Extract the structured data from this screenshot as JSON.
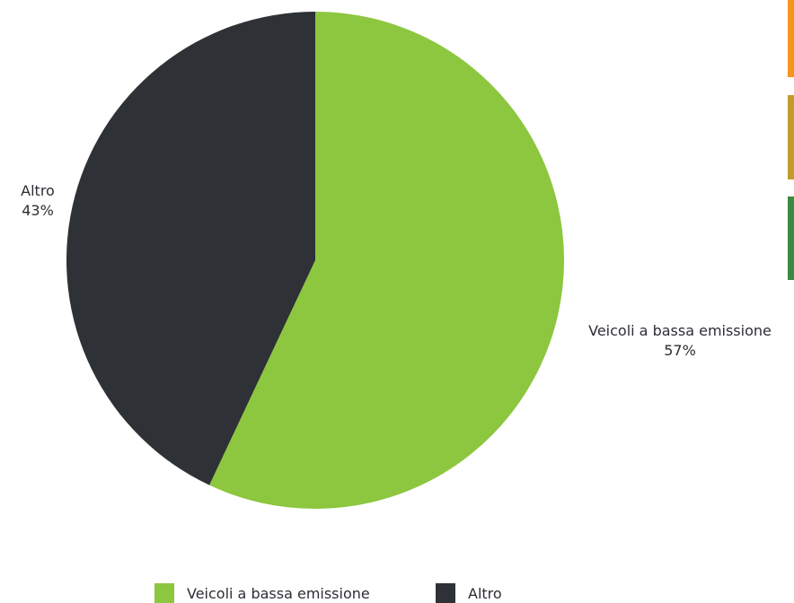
{
  "chart_data": {
    "type": "pie",
    "title": "",
    "slices": [
      {
        "label": "Veicoli a bassa emissione",
        "value": 57,
        "value_label": "57%",
        "color": "#8dc63f"
      },
      {
        "label": "Altro",
        "value": 43,
        "value_label": "43%",
        "color": "#2e3135"
      }
    ],
    "legend": {
      "placement": "bottom",
      "items": [
        {
          "label": "Veicoli a bassa emissione",
          "color": "#8dc63f"
        },
        {
          "label": "Altro",
          "color": "#2e3135"
        }
      ]
    }
  },
  "side_swatches": [
    {
      "color": "#f7941d"
    },
    {
      "color": "#c49a2c"
    },
    {
      "color": "#3c8a3f"
    }
  ]
}
